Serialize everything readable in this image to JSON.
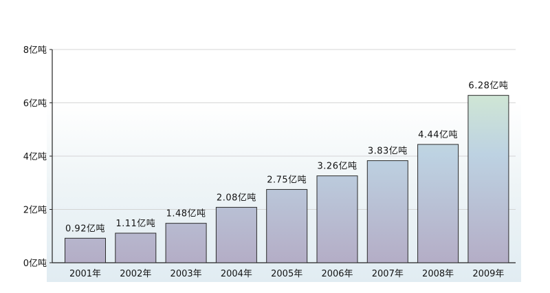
{
  "chart_data": {
    "type": "bar",
    "categories": [
      "2001年",
      "2002年",
      "2003年",
      "2004年",
      "2005年",
      "2006年",
      "2007年",
      "2008年",
      "2009年"
    ],
    "values": [
      0.92,
      1.11,
      1.48,
      2.08,
      2.75,
      3.26,
      3.83,
      4.44,
      6.28
    ],
    "data_labels": [
      "0.92亿吨",
      "1.11亿吨",
      "1.48亿吨",
      "2.08亿吨",
      "2.75亿吨",
      "3.26亿吨",
      "3.83亿吨",
      "4.44亿吨",
      "6.28亿吨"
    ],
    "y_ticks": [
      0,
      2,
      4,
      6,
      8
    ],
    "y_tick_labels": [
      "0亿吨",
      "2亿吨",
      "4亿吨",
      "6亿吨",
      "8亿吨"
    ],
    "ylim": [
      0,
      8
    ],
    "grid": true,
    "title": "",
    "xlabel": "",
    "ylabel": "",
    "colors": {
      "bar_top_highlight": "#cfe7cf",
      "bar_mid": "#bcd0e0",
      "bar_bottom": "#b5aec8",
      "bar_border": "#2a2a2a",
      "grid": "#d4d4d4",
      "axis": "#222222"
    }
  }
}
